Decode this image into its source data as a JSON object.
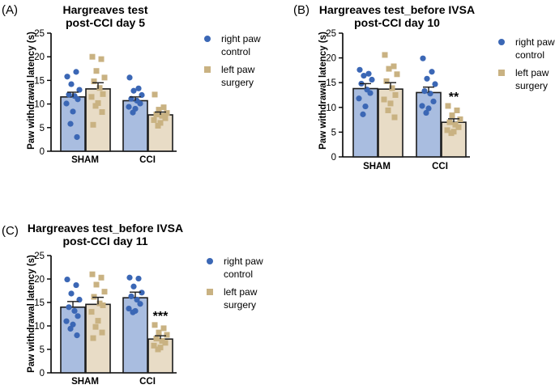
{
  "figure": {
    "legend": {
      "right": {
        "line1": "right paw",
        "line2": "control"
      },
      "left": {
        "line1": "left paw",
        "line2": "surgery"
      }
    }
  },
  "colors": {
    "right_fill": "#a9bde0",
    "right_dot": "#3b67b5",
    "left_fill": "#e8dcc6",
    "left_dot": "#c9b282",
    "axis": "#000000"
  },
  "chart_data": [
    {
      "type": "bar",
      "panel_label": "(A)",
      "title_line1": "Hargreaves test",
      "title_line2": "post-CCI day 5",
      "ylabel": "Paw withdrawal latency (s)",
      "xlabel": "",
      "ylim": [
        0,
        25
      ],
      "yticks": [
        "0",
        "5",
        "10",
        "15",
        "20",
        "25"
      ],
      "categories": [
        "SHAM",
        "CCI"
      ],
      "series": [
        {
          "name": "right paw control",
          "values": [
            11.5,
            10.7
          ],
          "sem": [
            1.0,
            0.8
          ],
          "points": [
            [
              15.8,
              16.8,
              14.2,
              13.0,
              12.0,
              11.7,
              11.0,
              10.1,
              8.4,
              5.8,
              3.0
            ],
            [
              15.6,
              13.3,
              12.8,
              11.9,
              11.1,
              10.7,
              10.1,
              9.4,
              9.0,
              8.2
            ]
          ]
        },
        {
          "name": "left paw surgery",
          "values": [
            13.2,
            7.7
          ],
          "sem": [
            1.3,
            0.6
          ],
          "points": [
            [
              20.0,
              19.5,
              17.0,
              15.6,
              14.8,
              13.4,
              12.1,
              11.5,
              10.2,
              9.6,
              8.3,
              5.6
            ],
            [
              12.0,
              9.3,
              8.8,
              8.1,
              7.8,
              7.5,
              7.0,
              6.6,
              6.0,
              5.4
            ]
          ]
        }
      ],
      "annotations": []
    },
    {
      "type": "bar",
      "panel_label": "(B)",
      "title_line1": "Hargreaves test_before IVSA",
      "title_line2": "post-CCI day 10",
      "ylabel": "Paw withdrawal latency (s)",
      "xlabel": "",
      "ylim": [
        0,
        25
      ],
      "yticks": [
        "0",
        "5",
        "10",
        "15",
        "20",
        "25"
      ],
      "categories": [
        "SHAM",
        "CCI"
      ],
      "series": [
        {
          "name": "right paw control",
          "values": [
            13.8,
            13.0
          ],
          "sem": [
            1.0,
            1.1
          ],
          "points": [
            [
              17.6,
              16.8,
              16.4,
              15.6,
              14.8,
              13.6,
              12.9,
              11.8,
              10.2,
              8.6
            ],
            [
              19.9,
              17.2,
              15.8,
              14.7,
              13.3,
              12.8,
              11.2,
              10.3,
              9.8,
              8.9
            ]
          ]
        },
        {
          "name": "left paw surgery",
          "values": [
            13.7,
            7.0
          ],
          "sem": [
            1.3,
            0.7
          ],
          "points": [
            [
              20.6,
              18.3,
              17.8,
              16.7,
              15.3,
              13.9,
              12.5,
              11.6,
              10.8,
              9.4,
              8.0
            ],
            [
              10.3,
              9.4,
              8.4,
              7.6,
              7.0,
              6.5,
              6.0,
              5.4,
              5.1,
              4.8
            ]
          ]
        }
      ],
      "annotations": [
        {
          "series": 1,
          "category": 1,
          "text": "**"
        }
      ]
    },
    {
      "type": "bar",
      "panel_label": "(C)",
      "title_line1": "Hargreaves test_before IVSA",
      "title_line2": "post-CCI day 11",
      "ylabel": "Paw withdrawal latency (s)",
      "xlabel": "",
      "ylim": [
        0,
        25
      ],
      "yticks": [
        "0",
        "5",
        "10",
        "15",
        "20",
        "25"
      ],
      "categories": [
        "SHAM",
        "CCI"
      ],
      "series": [
        {
          "name": "right paw control",
          "values": [
            14.0,
            16.0
          ],
          "sem": [
            1.2,
            1.2
          ],
          "points": [
            [
              19.9,
              18.7,
              16.9,
              15.6,
              14.0,
              13.2,
              12.1,
              11.0,
              10.3,
              9.4,
              8.0
            ],
            [
              20.3,
              20.1,
              18.4,
              17.1,
              16.3,
              15.6,
              14.7,
              13.7,
              13.2,
              12.9
            ]
          ]
        },
        {
          "name": "left paw surgery",
          "values": [
            14.6,
            7.2
          ],
          "sem": [
            1.5,
            0.7
          ],
          "points": [
            [
              21.0,
              20.3,
              18.8,
              17.3,
              16.2,
              14.8,
              14.4,
              13.0,
              11.1,
              9.8,
              8.6,
              7.4
            ],
            [
              10.2,
              9.5,
              8.6,
              8.1,
              7.3,
              6.8,
              6.4,
              5.8,
              5.4,
              5.0
            ]
          ]
        }
      ],
      "annotations": [
        {
          "series": 1,
          "category": 1,
          "text": "***"
        }
      ]
    }
  ]
}
